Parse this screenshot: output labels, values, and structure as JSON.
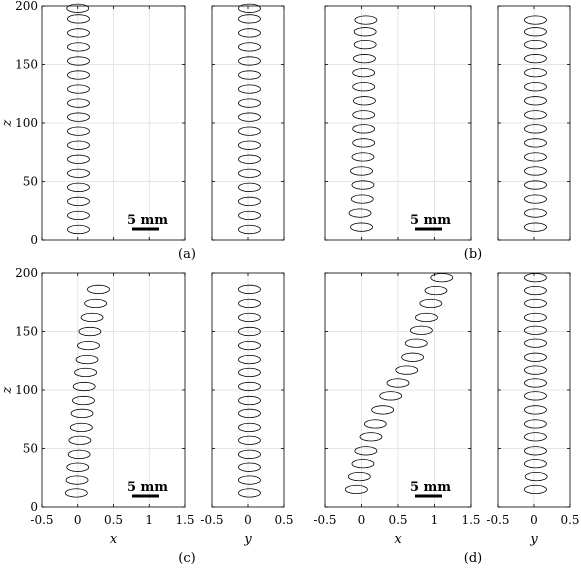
{
  "figure": {
    "panel_labels": [
      "(a)",
      "(b)",
      "(c)",
      "(d)"
    ],
    "axis_labels": {
      "x": "x",
      "y": "y",
      "z": "z"
    },
    "scale_bar_label": "5 mm"
  },
  "chart_data": [
    {
      "type": "scatter",
      "marker": "ellipse",
      "panel": "(a)",
      "x_axis": {
        "label": "x",
        "lim": [
          -0.5,
          1.5
        ],
        "ticks": [
          "-0.5",
          "0",
          "0.5",
          "1",
          "1.5"
        ]
      },
      "y_axis": {
        "label": "y",
        "lim": [
          -0.5,
          0.5
        ],
        "ticks": [
          "-0.5",
          "0",
          "0.5"
        ]
      },
      "z_axis": {
        "label": "z",
        "lim": [
          0,
          200
        ],
        "ticks": [
          "0",
          "50",
          "100",
          "150",
          "200"
        ]
      },
      "grid": true,
      "scale_bar": "5 mm",
      "z": [
        9,
        21,
        33,
        45,
        57,
        69,
        81,
        93,
        105,
        117,
        129,
        141,
        153,
        165,
        177,
        189,
        198
      ],
      "x": [
        0.01,
        0.01,
        0.01,
        0.01,
        0.01,
        0.01,
        0.01,
        0.01,
        0.01,
        0.01,
        0.01,
        0.01,
        0.01,
        0.01,
        0.01,
        0.01,
        0.0
      ],
      "y": [
        0.02,
        0.02,
        0.02,
        0.02,
        0.02,
        0.02,
        0.02,
        0.02,
        0.02,
        0.02,
        0.02,
        0.02,
        0.02,
        0.02,
        0.02,
        0.02,
        0.02
      ]
    },
    {
      "type": "scatter",
      "marker": "ellipse",
      "panel": "(b)",
      "x_axis": {
        "label": "x",
        "lim": [
          -0.5,
          1.5
        ],
        "ticks": [
          "-0.5",
          "0",
          "0.5",
          "1",
          "1.5"
        ]
      },
      "y_axis": {
        "label": "y",
        "lim": [
          -0.5,
          0.5
        ],
        "ticks": [
          "-0.5",
          "0",
          "0.5"
        ]
      },
      "z_axis": {
        "label": "z",
        "lim": [
          0,
          200
        ],
        "ticks": [
          "0",
          "50",
          "100",
          "150",
          "200"
        ]
      },
      "grid": true,
      "scale_bar": "5 mm",
      "z": [
        11,
        23,
        35,
        47,
        59,
        71,
        83,
        95,
        107,
        119,
        131,
        143,
        155,
        167,
        178,
        188
      ],
      "x": [
        0.0,
        -0.02,
        0.01,
        0.02,
        0.0,
        0.02,
        0.03,
        0.03,
        0.03,
        0.04,
        0.03,
        0.03,
        0.04,
        0.05,
        0.05,
        0.06
      ],
      "y": [
        0.02,
        0.02,
        0.02,
        0.02,
        0.02,
        0.02,
        0.02,
        0.02,
        0.02,
        0.02,
        0.02,
        0.02,
        0.02,
        0.02,
        0.02,
        0.02
      ]
    },
    {
      "type": "scatter",
      "marker": "ellipse",
      "panel": "(c)",
      "x_axis": {
        "label": "x",
        "lim": [
          -0.5,
          1.5
        ],
        "ticks": [
          "-0.5",
          "0",
          "0.5",
          "1",
          "1.5"
        ]
      },
      "y_axis": {
        "label": "y",
        "lim": [
          -0.5,
          0.5
        ],
        "ticks": [
          "-0.5",
          "0",
          "0.5"
        ]
      },
      "z_axis": {
        "label": "z",
        "lim": [
          0,
          200
        ],
        "ticks": [
          "0",
          "50",
          "100",
          "150",
          "200"
        ]
      },
      "grid": true,
      "scale_bar": "5 mm",
      "z": [
        12,
        23,
        34,
        45,
        57,
        68,
        80,
        91,
        103,
        115,
        126,
        138,
        150,
        162,
        174,
        186
      ],
      "x": [
        -0.02,
        -0.01,
        0.0,
        0.02,
        0.03,
        0.05,
        0.06,
        0.08,
        0.09,
        0.11,
        0.13,
        0.15,
        0.17,
        0.2,
        0.25,
        0.29
      ],
      "y": [
        0.02,
        0.02,
        0.02,
        0.02,
        0.02,
        0.02,
        0.02,
        0.02,
        0.02,
        0.02,
        0.02,
        0.02,
        0.02,
        0.02,
        0.02,
        0.02
      ]
    },
    {
      "type": "scatter",
      "marker": "ellipse",
      "panel": "(d)",
      "x_axis": {
        "label": "x",
        "lim": [
          -0.5,
          1.5
        ],
        "ticks": [
          "-0.5",
          "0",
          "0.5",
          "1",
          "1.5"
        ]
      },
      "y_axis": {
        "label": "y",
        "lim": [
          -0.5,
          0.5
        ],
        "ticks": [
          "-0.5",
          "0",
          "0.5"
        ]
      },
      "z_axis": {
        "label": "z",
        "lim": [
          0,
          200
        ],
        "ticks": [
          "0",
          "50",
          "100",
          "150",
          "200"
        ]
      },
      "grid": true,
      "scale_bar": "5 mm",
      "z": [
        15,
        26,
        37,
        48,
        60,
        71,
        83,
        95,
        106,
        117,
        128,
        140,
        151,
        162,
        174,
        185,
        196
      ],
      "x": [
        -0.07,
        -0.03,
        0.02,
        0.06,
        0.13,
        0.19,
        0.29,
        0.4,
        0.5,
        0.62,
        0.7,
        0.75,
        0.82,
        0.89,
        0.95,
        1.02,
        1.1
      ],
      "y": [
        0.02,
        0.03,
        0.02,
        0.02,
        0.02,
        0.02,
        0.02,
        0.02,
        0.02,
        0.02,
        0.02,
        0.02,
        0.02,
        0.02,
        0.02,
        0.02,
        0.02
      ]
    }
  ]
}
